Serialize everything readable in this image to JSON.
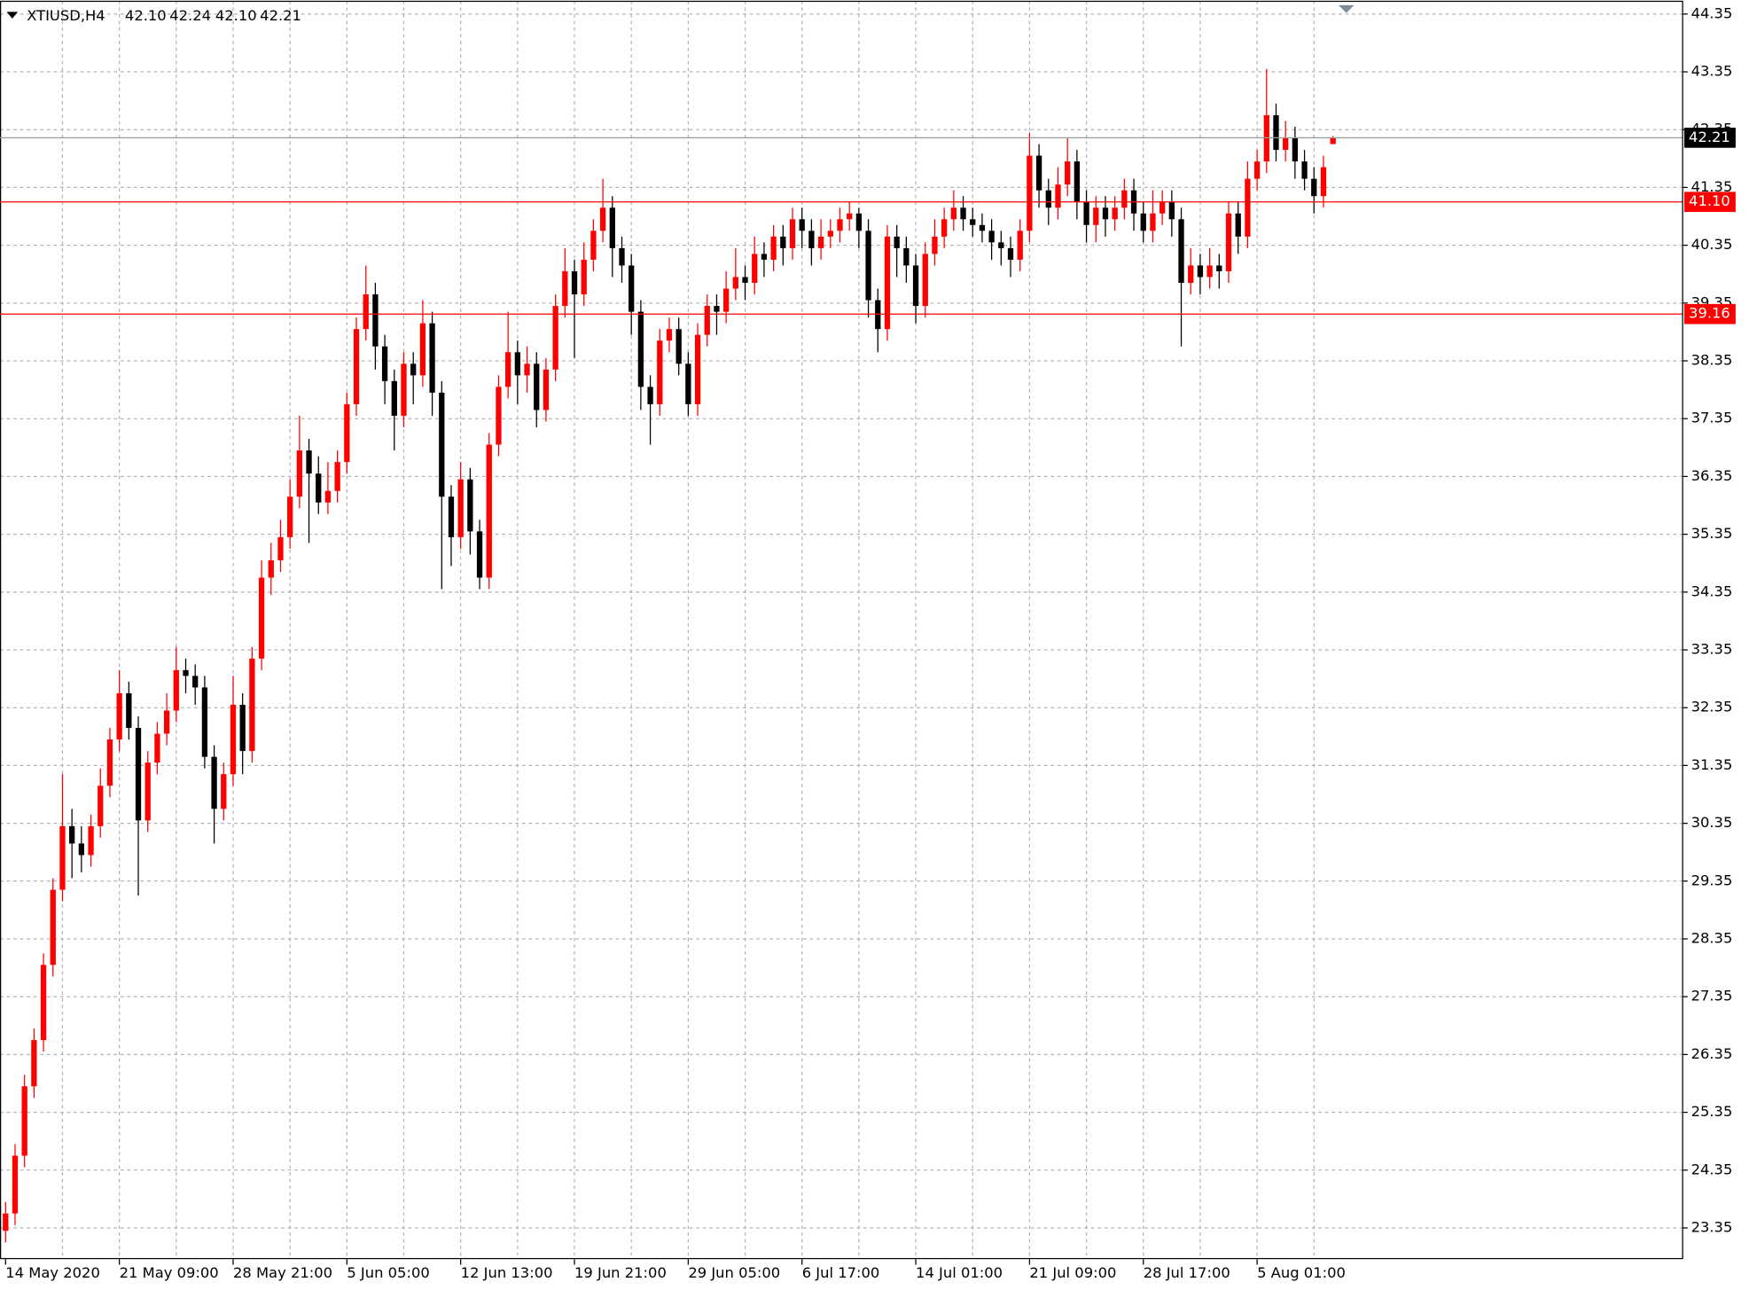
{
  "chart_data": {
    "type": "candlestick",
    "title": "XTIUSD,H4",
    "ohlc_labels": [
      "42.10",
      "42.24",
      "42.10",
      "42.21"
    ],
    "categories": [
      "14 May 2020",
      null,
      null,
      null,
      null,
      null,
      null,
      null,
      null,
      null,
      null,
      null,
      "21 May 09:00",
      null,
      null,
      null,
      null,
      null,
      null,
      null,
      null,
      null,
      null,
      null,
      "28 May 21:00",
      null,
      null,
      null,
      null,
      null,
      null,
      null,
      null,
      null,
      null,
      null,
      "5 Jun 05:00",
      null,
      null,
      null,
      null,
      null,
      null,
      null,
      null,
      null,
      null,
      null,
      "12 Jun 13:00",
      null,
      null,
      null,
      null,
      null,
      null,
      null,
      null,
      null,
      null,
      null,
      "19 Jun 21:00",
      null,
      null,
      null,
      null,
      null,
      null,
      null,
      null,
      null,
      null,
      null,
      "29 Jun 05:00",
      null,
      null,
      null,
      null,
      null,
      null,
      null,
      null,
      null,
      null,
      null,
      "6 Jul 17:00",
      null,
      null,
      null,
      null,
      null,
      null,
      null,
      null,
      null,
      null,
      null,
      "14 Jul 01:00",
      null,
      null,
      null,
      null,
      null,
      null,
      null,
      null,
      null,
      null,
      null,
      "21 Jul 09:00",
      null,
      null,
      null,
      null,
      null,
      null,
      null,
      null,
      null,
      null,
      null,
      "28 Jul 17:00",
      null,
      null,
      null,
      null,
      null,
      null,
      null,
      null,
      null,
      null,
      null,
      "5 Aug 01:00",
      null,
      null,
      null,
      null,
      null,
      null,
      null,
      null
    ],
    "open": [
      23.3,
      23.6,
      24.6,
      25.8,
      26.6,
      27.9,
      29.2,
      30.3,
      30.0,
      29.8,
      30.3,
      31.0,
      31.8,
      32.6,
      32.0,
      30.4,
      31.4,
      31.9,
      32.3,
      33.0,
      32.9,
      32.7,
      31.5,
      30.6,
      31.2,
      32.4,
      31.6,
      33.2,
      34.6,
      34.9,
      35.3,
      36.0,
      36.8,
      36.4,
      35.9,
      36.1,
      36.6,
      37.6,
      38.9,
      39.5,
      38.6,
      38.0,
      37.4,
      38.3,
      38.1,
      39.0,
      37.8,
      36.0,
      35.3,
      36.3,
      35.4,
      34.6,
      36.9,
      37.9,
      38.5,
      38.1,
      38.3,
      37.5,
      38.2,
      39.3,
      39.9,
      39.5,
      40.1,
      40.6,
      41.0,
      40.3,
      40.0,
      39.2,
      37.9,
      37.6,
      38.7,
      38.9,
      38.3,
      37.6,
      38.8,
      39.3,
      39.2,
      39.6,
      39.8,
      39.7,
      40.2,
      40.1,
      40.5,
      40.3,
      40.8,
      40.6,
      40.3,
      40.5,
      40.6,
      40.8,
      40.9,
      40.6,
      39.4,
      38.9,
      40.5,
      40.3,
      40.0,
      39.3,
      40.2,
      40.5,
      40.8,
      41.0,
      40.8,
      40.7,
      40.6,
      40.4,
      40.3,
      40.1,
      40.6,
      41.9,
      41.3,
      41.0,
      41.4,
      41.8,
      41.1,
      40.7,
      41.0,
      40.8,
      41.0,
      41.3,
      40.9,
      40.6,
      40.9,
      41.1,
      40.8,
      39.7,
      40.0,
      39.8,
      40.0,
      39.9,
      40.9,
      40.5,
      41.5,
      41.8,
      42.6,
      42.0,
      42.2,
      41.8,
      41.5,
      41.2,
      42.1
    ],
    "high": [
      23.8,
      24.8,
      26.0,
      26.8,
      28.1,
      29.4,
      31.2,
      30.6,
      30.3,
      30.5,
      31.3,
      32.0,
      33.0,
      32.8,
      32.2,
      31.6,
      32.1,
      32.6,
      33.4,
      33.2,
      33.1,
      32.9,
      31.7,
      31.4,
      32.9,
      32.6,
      33.4,
      34.9,
      35.2,
      35.6,
      36.3,
      37.4,
      37.0,
      36.7,
      36.6,
      36.8,
      37.8,
      39.1,
      40.0,
      39.7,
      38.8,
      38.2,
      38.5,
      38.5,
      39.4,
      39.2,
      38.0,
      36.2,
      36.6,
      36.5,
      35.6,
      37.1,
      38.1,
      39.2,
      38.7,
      38.6,
      38.5,
      38.4,
      39.5,
      40.3,
      40.1,
      40.4,
      40.8,
      41.5,
      41.2,
      40.5,
      40.2,
      39.4,
      38.1,
      38.9,
      39.1,
      39.1,
      38.5,
      39.0,
      39.5,
      39.5,
      39.9,
      40.3,
      40.0,
      40.5,
      40.4,
      40.7,
      40.7,
      41.0,
      41.0,
      40.8,
      40.8,
      40.8,
      41.0,
      41.1,
      41.0,
      40.8,
      39.6,
      40.7,
      40.7,
      40.5,
      40.2,
      40.4,
      40.8,
      41.0,
      41.3,
      41.2,
      41.0,
      40.9,
      40.8,
      40.6,
      40.5,
      40.8,
      42.3,
      42.1,
      41.5,
      41.7,
      42.2,
      42.0,
      41.3,
      41.2,
      41.2,
      41.2,
      41.5,
      41.5,
      41.1,
      41.3,
      41.3,
      41.3,
      41.0,
      40.3,
      40.2,
      40.3,
      40.2,
      41.1,
      41.1,
      41.8,
      42.0,
      43.4,
      42.8,
      42.5,
      42.4,
      42.0,
      41.7,
      41.9,
      42.24
    ],
    "low": [
      23.1,
      23.4,
      24.4,
      25.6,
      26.4,
      27.7,
      29.0,
      29.4,
      29.5,
      29.6,
      30.1,
      30.8,
      31.6,
      31.8,
      29.1,
      30.2,
      31.2,
      31.7,
      32.1,
      32.6,
      32.4,
      31.3,
      30.0,
      30.4,
      31.0,
      31.2,
      31.4,
      33.0,
      34.3,
      34.7,
      35.1,
      35.8,
      35.2,
      35.7,
      35.7,
      35.9,
      36.4,
      37.4,
      38.7,
      38.2,
      37.6,
      36.8,
      37.2,
      37.6,
      37.9,
      37.4,
      34.4,
      34.8,
      35.1,
      35.0,
      34.4,
      34.4,
      36.7,
      37.7,
      37.6,
      37.8,
      37.2,
      37.3,
      38.0,
      39.1,
      38.4,
      39.3,
      39.9,
      40.4,
      39.8,
      39.7,
      38.8,
      37.5,
      36.9,
      37.4,
      38.5,
      38.1,
      37.4,
      37.4,
      38.6,
      38.8,
      39.0,
      39.4,
      39.4,
      39.5,
      39.8,
      39.9,
      40.0,
      40.1,
      40.3,
      40.0,
      40.1,
      40.3,
      40.4,
      40.6,
      40.3,
      39.1,
      38.5,
      38.7,
      39.8,
      39.7,
      39.0,
      39.1,
      40.0,
      40.3,
      40.6,
      40.6,
      40.5,
      40.4,
      40.1,
      40.0,
      39.8,
      39.9,
      40.4,
      41.0,
      40.7,
      40.8,
      41.2,
      40.8,
      40.4,
      40.4,
      40.5,
      40.6,
      40.8,
      40.6,
      40.4,
      40.4,
      40.7,
      40.5,
      38.6,
      39.5,
      39.5,
      39.6,
      39.6,
      39.7,
      40.2,
      40.3,
      41.3,
      41.6,
      41.8,
      41.8,
      41.5,
      41.3,
      40.9,
      41.0,
      42.1
    ],
    "close": [
      23.6,
      24.6,
      25.8,
      26.6,
      27.9,
      29.2,
      30.3,
      30.0,
      29.8,
      30.3,
      31.0,
      31.8,
      32.6,
      32.0,
      30.4,
      31.4,
      31.9,
      32.3,
      33.0,
      32.9,
      32.7,
      31.5,
      30.6,
      31.2,
      32.4,
      31.6,
      33.2,
      34.6,
      34.9,
      35.3,
      36.0,
      36.8,
      36.4,
      35.9,
      36.1,
      36.6,
      37.6,
      38.9,
      39.5,
      38.6,
      38.0,
      37.4,
      38.3,
      38.1,
      39.0,
      37.8,
      36.0,
      35.3,
      36.3,
      35.4,
      34.6,
      36.9,
      37.9,
      38.5,
      38.1,
      38.3,
      37.5,
      38.2,
      39.3,
      39.9,
      39.5,
      40.1,
      40.6,
      41.0,
      40.3,
      40.0,
      39.2,
      37.9,
      37.6,
      38.7,
      38.9,
      38.3,
      37.6,
      38.8,
      39.3,
      39.2,
      39.6,
      39.8,
      39.7,
      40.2,
      40.1,
      40.5,
      40.3,
      40.8,
      40.6,
      40.3,
      40.5,
      40.6,
      40.8,
      40.9,
      40.6,
      39.4,
      38.9,
      40.5,
      40.3,
      40.0,
      39.3,
      40.2,
      40.5,
      40.8,
      41.0,
      40.8,
      40.7,
      40.6,
      40.4,
      40.3,
      40.1,
      40.6,
      41.9,
      41.3,
      41.0,
      41.4,
      41.8,
      41.1,
      40.7,
      41.0,
      40.8,
      41.0,
      41.3,
      40.9,
      40.6,
      40.9,
      41.1,
      40.8,
      39.7,
      40.0,
      39.8,
      40.0,
      39.9,
      40.9,
      40.5,
      41.5,
      41.8,
      42.6,
      42.0,
      42.2,
      41.8,
      41.5,
      41.2,
      41.7,
      42.21
    ],
    "up_color": "#ff0000",
    "down_color": "#000000",
    "ylim": [
      22.81,
      44.58
    ],
    "yticks": [
      23.35,
      24.35,
      25.35,
      26.35,
      27.35,
      28.35,
      29.35,
      30.35,
      31.35,
      32.35,
      33.35,
      34.35,
      35.35,
      36.35,
      37.35,
      38.35,
      39.35,
      40.35,
      41.35,
      42.35,
      43.35,
      44.35
    ],
    "hlines": [
      {
        "value": 41.1,
        "label": "41.10",
        "color": "#ff0000"
      },
      {
        "value": 39.16,
        "label": "39.16",
        "color": "#ff0000"
      }
    ],
    "grid": true
  }
}
